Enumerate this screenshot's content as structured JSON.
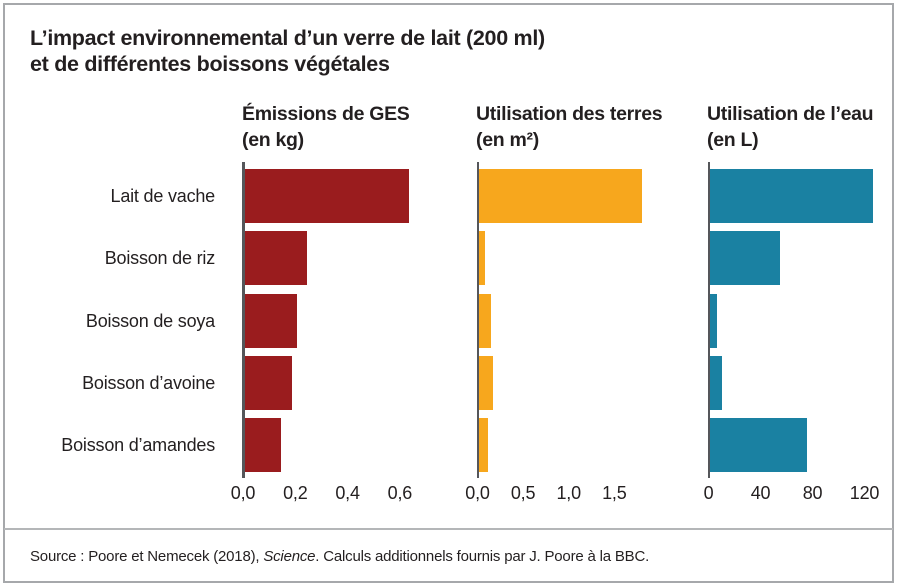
{
  "header": {
    "title_line1": "L’impact environnemental d’un verre de lait (200 ml)",
    "title_line2": "et de différentes boissons végétales"
  },
  "footer": {
    "source_prefix": "Source : Poore et Nemecek (2018), ",
    "source_italic": "Science",
    "source_suffix": ". Calculs additionnels fournis par J. Poore à la BBC."
  },
  "chart_data": {
    "type": "bar",
    "orientation": "horizontal",
    "title": "L’impact environnemental d’un verre de lait (200 ml) et de différentes boissons végétales",
    "categories": [
      "Lait de vache",
      "Boisson de riz",
      "Boisson de soya",
      "Boisson d’avoine",
      "Boisson d’amandes"
    ],
    "grid": false,
    "legend": false,
    "panels": [
      {
        "header_line1": "Émissions de GES",
        "header_line2": "(en kg)",
        "unit": "kg",
        "values": [
          0.63,
          0.24,
          0.2,
          0.18,
          0.14
        ],
        "ticks": [
          0,
          0.2,
          0.4,
          0.6
        ],
        "tick_labels": [
          "0,0",
          "0,2",
          "0,4",
          "0,6"
        ],
        "xlim": [
          0,
          0.66
        ],
        "color": "#9a1c1e"
      },
      {
        "header_line1": "Utilisation des terres",
        "header_line2": "(en m²)",
        "unit": "m²",
        "values": [
          1.79,
          0.07,
          0.13,
          0.15,
          0.1
        ],
        "ticks": [
          0,
          0.5,
          1.0,
          1.5
        ],
        "tick_labels": [
          "0,0",
          "0,5",
          "1,0",
          "1,5"
        ],
        "xlim": [
          0,
          1.85
        ],
        "color": "#f7a71d"
      },
      {
        "header_line1": "Utilisation de l’eau",
        "header_line2": "(en L)",
        "unit": "L",
        "values": [
          125.6,
          54,
          5.6,
          9.6,
          74.3
        ],
        "ticks": [
          0,
          40,
          80,
          120
        ],
        "tick_labels": [
          "0",
          "40",
          "80",
          "120"
        ],
        "xlim": [
          0,
          132
        ],
        "color": "#1a81a2"
      }
    ]
  }
}
